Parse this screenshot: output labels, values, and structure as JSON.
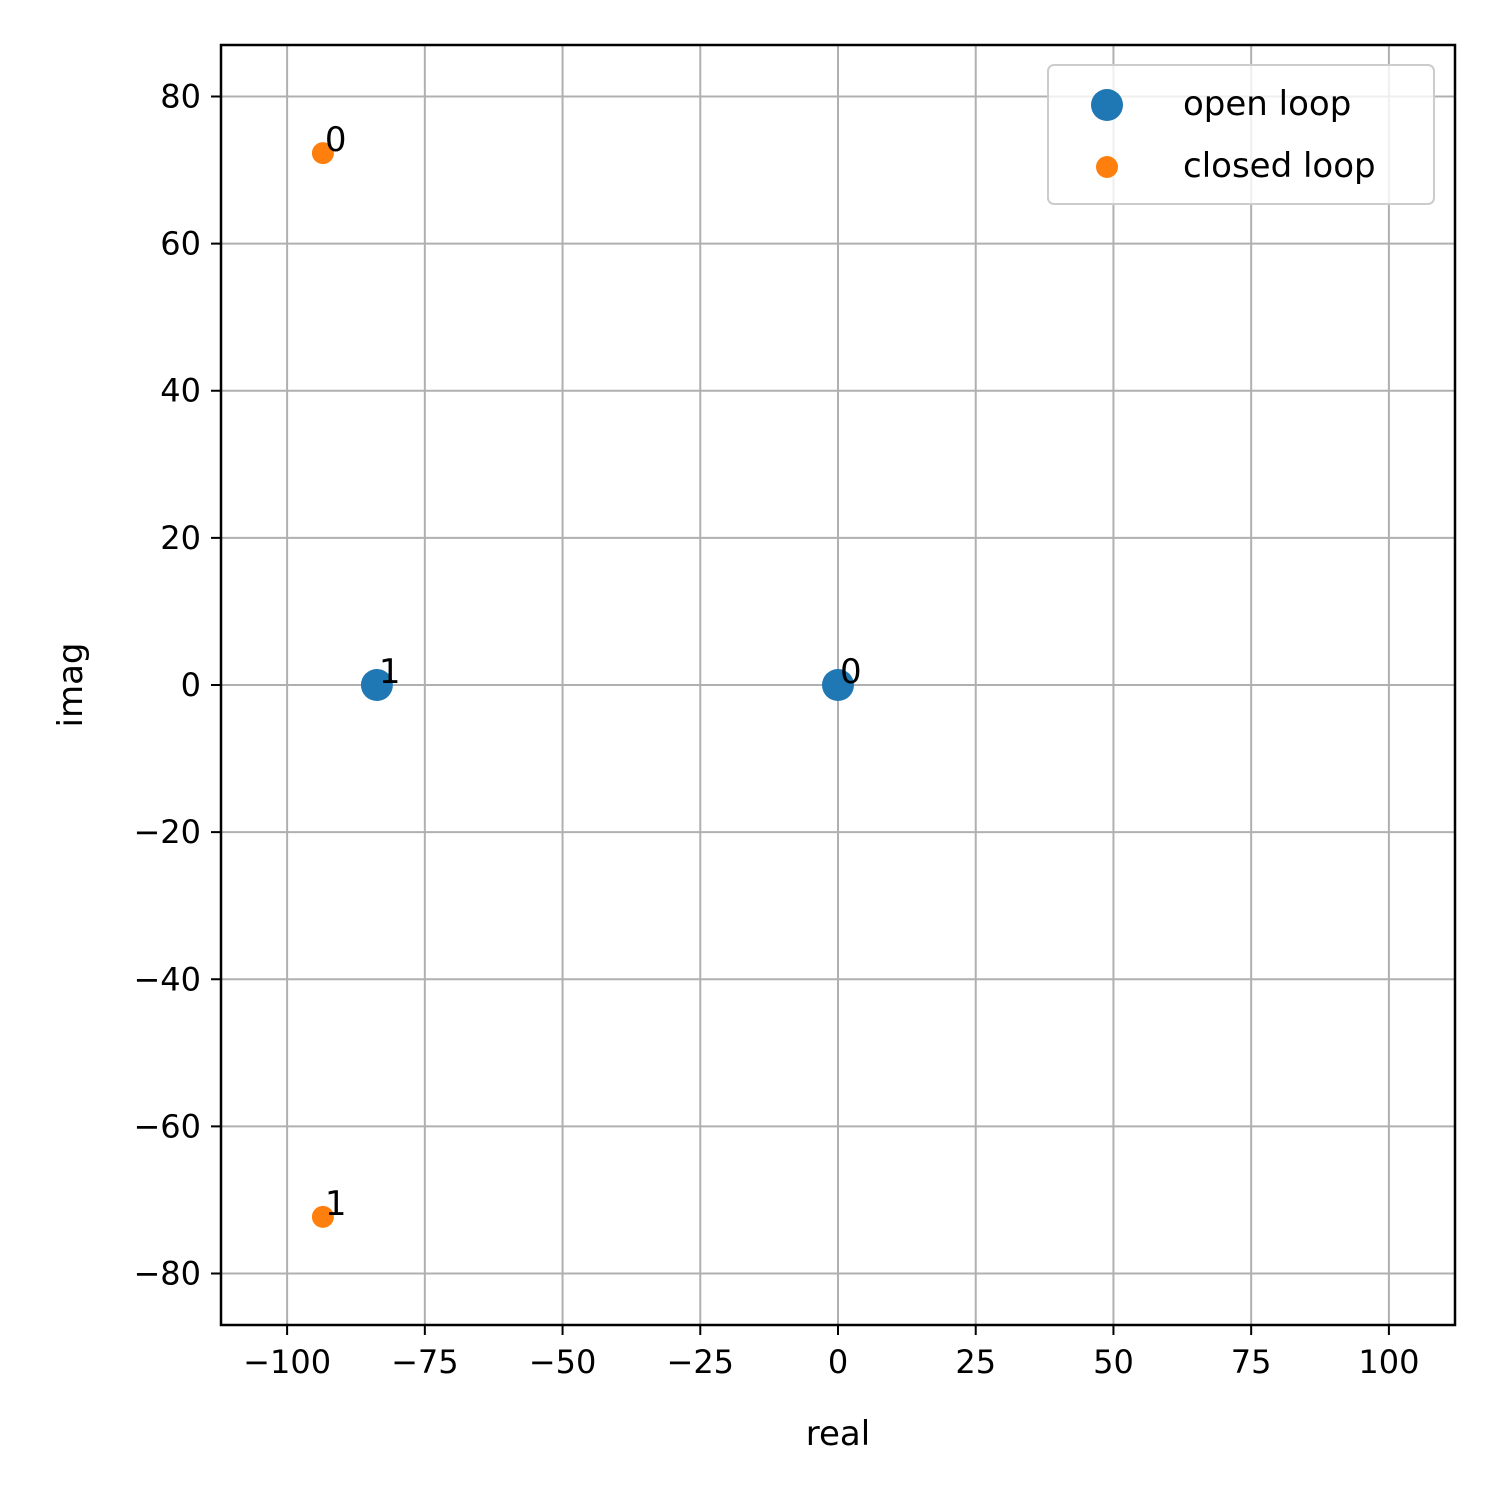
{
  "chart_data": {
    "type": "scatter",
    "title": "",
    "xlabel": "real",
    "ylabel": "imag",
    "xlim": [
      -112,
      112
    ],
    "ylim": [
      -87,
      87
    ],
    "xticks": [
      -100,
      -75,
      -50,
      -25,
      0,
      25,
      50,
      75,
      100
    ],
    "xtick_labels": [
      "−100",
      "−75",
      "−50",
      "−25",
      "0",
      "25",
      "50",
      "75",
      "100"
    ],
    "yticks": [
      -80,
      -60,
      -40,
      -20,
      0,
      20,
      40,
      60,
      80
    ],
    "ytick_labels": [
      "−80",
      "−60",
      "−40",
      "−20",
      "0",
      "20",
      "40",
      "60",
      "80"
    ],
    "grid": true,
    "legend_position": "top-right",
    "series": [
      {
        "name": "open loop",
        "color": "#1f77b4",
        "marker_size": "large",
        "points": [
          {
            "x": 0,
            "y": 0,
            "label": "0"
          },
          {
            "x": -83.7,
            "y": 0,
            "label": "1"
          }
        ]
      },
      {
        "name": "closed loop",
        "color": "#ff7f0e",
        "marker_size": "small",
        "points": [
          {
            "x": -93.5,
            "y": 72.3,
            "label": "0"
          },
          {
            "x": -93.5,
            "y": -72.3,
            "label": "1"
          }
        ]
      }
    ]
  }
}
